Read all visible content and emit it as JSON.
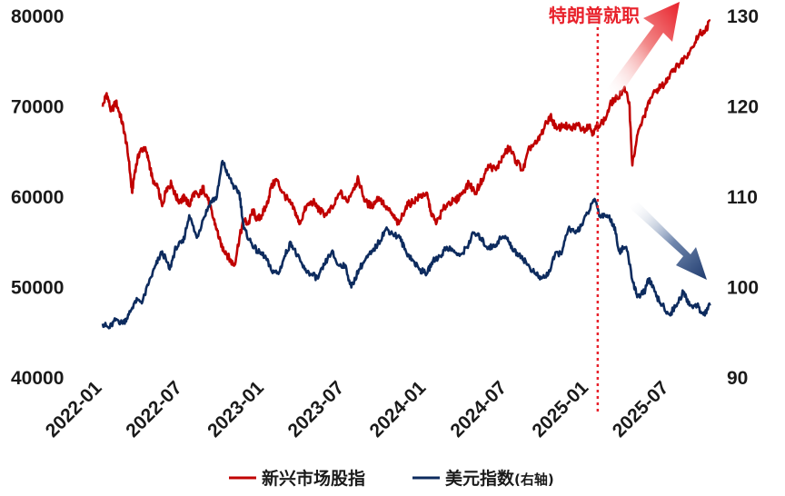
{
  "chart_data": {
    "type": "line",
    "title": "",
    "xlabel": "",
    "ylabel": "",
    "x_tick_labels": [
      "2022-01",
      "2022-07",
      "2023-01",
      "2023-07",
      "2024-01",
      "2024-07",
      "2025-01",
      "2025-07"
    ],
    "y_left": {
      "ticks": [
        40000,
        50000,
        60000,
        70000,
        80000
      ],
      "ylim": [
        40000,
        80000
      ]
    },
    "y_right": {
      "ticks": [
        90,
        100,
        110,
        120,
        130
      ],
      "ylim": [
        90,
        130
      ]
    },
    "grid": false,
    "legend_position": "bottom",
    "annotation": {
      "text": "特朗普就职",
      "date": "2025-01-20",
      "color": "#e8212b"
    },
    "legend": {
      "series_1": "新兴市场股指",
      "series_2_main": "美元指数",
      "series_2_suffix": "(右轴)"
    },
    "series": [
      {
        "name": "新兴市场股指",
        "axis": "left",
        "color": "#c00000",
        "points": [
          [
            "2022-01-01",
            70000
          ],
          [
            "2022-01-10",
            71500
          ],
          [
            "2022-01-20",
            69500
          ],
          [
            "2022-01-31",
            70500
          ],
          [
            "2022-02-10",
            69000
          ],
          [
            "2022-02-20",
            67000
          ],
          [
            "2022-03-01",
            64000
          ],
          [
            "2022-03-08",
            60500
          ],
          [
            "2022-03-15",
            63000
          ],
          [
            "2022-03-25",
            65000
          ],
          [
            "2022-04-05",
            65500
          ],
          [
            "2022-04-15",
            64000
          ],
          [
            "2022-04-25",
            61500
          ],
          [
            "2022-05-05",
            61000
          ],
          [
            "2022-05-15",
            59000
          ],
          [
            "2022-05-25",
            61000
          ],
          [
            "2022-06-05",
            61500
          ],
          [
            "2022-06-15",
            60000
          ],
          [
            "2022-06-25",
            59500
          ],
          [
            "2022-07-05",
            60000
          ],
          [
            "2022-07-15",
            59000
          ],
          [
            "2022-07-25",
            60500
          ],
          [
            "2022-08-05",
            60000
          ],
          [
            "2022-08-15",
            61000
          ],
          [
            "2022-08-25",
            60000
          ],
          [
            "2022-09-05",
            58000
          ],
          [
            "2022-09-15",
            56500
          ],
          [
            "2022-09-25",
            54500
          ],
          [
            "2022-10-05",
            54000
          ],
          [
            "2022-10-15",
            53000
          ],
          [
            "2022-10-25",
            52500
          ],
          [
            "2022-11-05",
            55500
          ],
          [
            "2022-11-15",
            57500
          ],
          [
            "2022-11-25",
            57000
          ],
          [
            "2022-12-05",
            58500
          ],
          [
            "2022-12-15",
            57500
          ],
          [
            "2022-12-25",
            58000
          ],
          [
            "2023-01-05",
            59000
          ],
          [
            "2023-01-15",
            61000
          ],
          [
            "2023-01-27",
            62000
          ],
          [
            "2023-02-10",
            60500
          ],
          [
            "2023-02-25",
            59500
          ],
          [
            "2023-03-10",
            58500
          ],
          [
            "2023-03-20",
            57000
          ],
          [
            "2023-04-05",
            59000
          ],
          [
            "2023-04-20",
            59500
          ],
          [
            "2023-05-05",
            58500
          ],
          [
            "2023-05-20",
            58000
          ],
          [
            "2023-06-05",
            59000
          ],
          [
            "2023-06-20",
            60500
          ],
          [
            "2023-07-05",
            59500
          ],
          [
            "2023-07-20",
            61000
          ],
          [
            "2023-07-31",
            62000
          ],
          [
            "2023-08-15",
            59500
          ],
          [
            "2023-08-30",
            59000
          ],
          [
            "2023-09-15",
            60000
          ],
          [
            "2023-09-30",
            59000
          ],
          [
            "2023-10-15",
            58000
          ],
          [
            "2023-10-30",
            57000
          ],
          [
            "2023-11-15",
            59000
          ],
          [
            "2023-11-30",
            59500
          ],
          [
            "2023-12-15",
            60000
          ],
          [
            "2023-12-31",
            60500
          ],
          [
            "2024-01-10",
            58500
          ],
          [
            "2024-01-22",
            57000
          ],
          [
            "2024-02-05",
            58500
          ],
          [
            "2024-02-20",
            59500
          ],
          [
            "2024-03-05",
            59500
          ],
          [
            "2024-03-20",
            60500
          ],
          [
            "2024-04-05",
            61500
          ],
          [
            "2024-04-20",
            60500
          ],
          [
            "2024-05-05",
            62000
          ],
          [
            "2024-05-20",
            63500
          ],
          [
            "2024-06-05",
            63000
          ],
          [
            "2024-06-20",
            64500
          ],
          [
            "2024-07-05",
            65500
          ],
          [
            "2024-07-20",
            64000
          ],
          [
            "2024-08-05",
            63000
          ],
          [
            "2024-08-20",
            65500
          ],
          [
            "2024-09-05",
            66000
          ],
          [
            "2024-09-20",
            67500
          ],
          [
            "2024-10-05",
            69000
          ],
          [
            "2024-10-20",
            67500
          ],
          [
            "2024-11-05",
            68000
          ],
          [
            "2024-11-20",
            67500
          ],
          [
            "2024-12-05",
            68000
          ],
          [
            "2024-12-20",
            67500
          ],
          [
            "2024-12-31",
            68000
          ],
          [
            "2025-01-10",
            67000
          ],
          [
            "2025-01-20",
            68000
          ],
          [
            "2025-02-05",
            68500
          ],
          [
            "2025-02-20",
            70500
          ],
          [
            "2025-03-05",
            71000
          ],
          [
            "2025-03-20",
            72000
          ],
          [
            "2025-04-01",
            70500
          ],
          [
            "2025-04-08",
            63500
          ],
          [
            "2025-04-20",
            67000
          ],
          [
            "2025-05-05",
            69000
          ],
          [
            "2025-05-20",
            71000
          ],
          [
            "2025-06-05",
            72000
          ],
          [
            "2025-06-20",
            72500
          ],
          [
            "2025-07-05",
            74000
          ],
          [
            "2025-07-20",
            74500
          ],
          [
            "2025-08-05",
            75500
          ],
          [
            "2025-08-20",
            76500
          ],
          [
            "2025-09-05",
            78000
          ],
          [
            "2025-09-20",
            78500
          ],
          [
            "2025-09-30",
            79500
          ]
        ]
      },
      {
        "name": "美元指数",
        "axis": "right",
        "color": "#0d2b5e",
        "points": [
          [
            "2022-01-01",
            96.0
          ],
          [
            "2022-01-15",
            95.5
          ],
          [
            "2022-02-01",
            96.5
          ],
          [
            "2022-02-15",
            96.0
          ],
          [
            "2022-03-01",
            97.0
          ],
          [
            "2022-03-15",
            98.5
          ],
          [
            "2022-04-01",
            98.5
          ],
          [
            "2022-04-15",
            100.5
          ],
          [
            "2022-05-01",
            102.5
          ],
          [
            "2022-05-15",
            104.0
          ],
          [
            "2022-06-01",
            102.0
          ],
          [
            "2022-06-15",
            104.5
          ],
          [
            "2022-07-01",
            105.0
          ],
          [
            "2022-07-15",
            108.0
          ],
          [
            "2022-08-01",
            105.5
          ],
          [
            "2022-08-15",
            107.5
          ],
          [
            "2022-09-01",
            109.5
          ],
          [
            "2022-09-15",
            110.0
          ],
          [
            "2022-09-28",
            114.0
          ],
          [
            "2022-10-10",
            112.5
          ],
          [
            "2022-10-25",
            111.0
          ],
          [
            "2022-11-05",
            110.5
          ],
          [
            "2022-11-15",
            106.5
          ],
          [
            "2022-12-01",
            105.0
          ],
          [
            "2022-12-15",
            104.0
          ],
          [
            "2023-01-01",
            103.5
          ],
          [
            "2023-01-15",
            102.0
          ],
          [
            "2023-02-01",
            101.5
          ],
          [
            "2023-02-15",
            103.5
          ],
          [
            "2023-03-01",
            105.0
          ],
          [
            "2023-03-15",
            103.5
          ],
          [
            "2023-04-01",
            102.0
          ],
          [
            "2023-04-15",
            101.5
          ],
          [
            "2023-05-01",
            101.0
          ],
          [
            "2023-05-15",
            102.5
          ],
          [
            "2023-06-01",
            104.0
          ],
          [
            "2023-06-15",
            102.5
          ],
          [
            "2023-07-01",
            102.5
          ],
          [
            "2023-07-15",
            100.0
          ],
          [
            "2023-08-01",
            102.0
          ],
          [
            "2023-08-15",
            103.0
          ],
          [
            "2023-09-01",
            104.0
          ],
          [
            "2023-09-15",
            105.0
          ],
          [
            "2023-10-01",
            106.5
          ],
          [
            "2023-10-15",
            106.0
          ],
          [
            "2023-11-01",
            105.5
          ],
          [
            "2023-11-15",
            104.0
          ],
          [
            "2023-12-01",
            103.0
          ],
          [
            "2023-12-15",
            102.0
          ],
          [
            "2024-01-01",
            101.5
          ],
          [
            "2024-01-15",
            103.0
          ],
          [
            "2024-02-01",
            103.5
          ],
          [
            "2024-02-15",
            104.5
          ],
          [
            "2024-03-01",
            104.0
          ],
          [
            "2024-03-15",
            103.5
          ],
          [
            "2024-04-01",
            104.5
          ],
          [
            "2024-04-15",
            106.0
          ],
          [
            "2024-05-01",
            105.5
          ],
          [
            "2024-05-15",
            104.5
          ],
          [
            "2024-06-01",
            104.5
          ],
          [
            "2024-06-15",
            105.5
          ],
          [
            "2024-07-01",
            105.5
          ],
          [
            "2024-07-15",
            104.0
          ],
          [
            "2024-08-01",
            103.5
          ],
          [
            "2024-08-15",
            102.5
          ],
          [
            "2024-09-01",
            101.5
          ],
          [
            "2024-09-15",
            101.0
          ],
          [
            "2024-10-01",
            101.5
          ],
          [
            "2024-10-15",
            103.5
          ],
          [
            "2024-11-01",
            104.0
          ],
          [
            "2024-11-15",
            106.5
          ],
          [
            "2024-12-01",
            106.0
          ],
          [
            "2024-12-15",
            107.0
          ],
          [
            "2025-01-01",
            108.5
          ],
          [
            "2025-01-13",
            109.8
          ],
          [
            "2025-01-25",
            108.0
          ],
          [
            "2025-02-10",
            108.0
          ],
          [
            "2025-02-25",
            107.0
          ],
          [
            "2025-03-10",
            104.0
          ],
          [
            "2025-03-25",
            104.5
          ],
          [
            "2025-04-10",
            100.5
          ],
          [
            "2025-04-20",
            99.0
          ],
          [
            "2025-05-05",
            99.5
          ],
          [
            "2025-05-15",
            101.0
          ],
          [
            "2025-06-01",
            99.0
          ],
          [
            "2025-06-15",
            98.0
          ],
          [
            "2025-07-01",
            97.0
          ],
          [
            "2025-07-15",
            98.0
          ],
          [
            "2025-08-01",
            99.5
          ],
          [
            "2025-08-15",
            98.0
          ],
          [
            "2025-09-01",
            98.0
          ],
          [
            "2025-09-15",
            97.0
          ],
          [
            "2025-09-30",
            98.0
          ]
        ]
      }
    ]
  }
}
